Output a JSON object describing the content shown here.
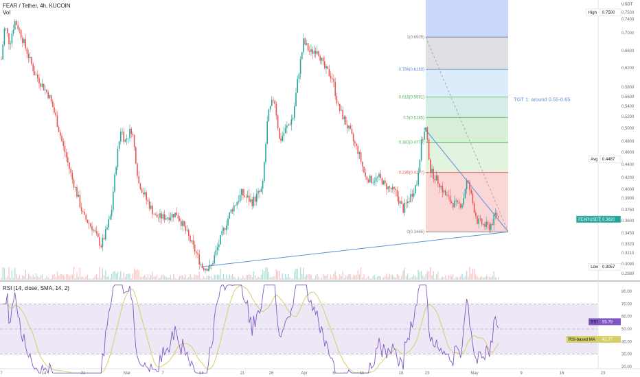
{
  "header": {
    "symbol_line": "FEAR / Tether, 4h, KUCOIN",
    "vol_label": "Vol",
    "currency": "USDT"
  },
  "rsi_header": "RSI (14, close, SMA, 14, 2)",
  "colors": {
    "up": "#26a69a",
    "down": "#ef5350",
    "trendline": "#5b8fd6",
    "rsi_line": "#7e57c2",
    "rsi_ma": "#d4cf6a",
    "rsi_band": "#ede7f6"
  },
  "chart_data": [
    {
      "type": "candlestick",
      "title": "FEAR / Tether, 4h, KUCOIN",
      "ylim": [
        0.298,
        0.75
      ],
      "y_ticks": [
        "0.7500",
        "0.7400",
        "0.7000",
        "0.6600",
        "0.6200",
        "0.5800",
        "0.5600",
        "0.5400",
        "0.5200",
        "0.5000",
        "0.4800",
        "0.4600",
        "0.4400",
        "0.4200",
        "0.4000",
        "0.3900",
        "0.3750",
        "0.3600",
        "0.3450",
        "0.3320",
        "0.3210",
        "0.3090",
        "0.2980"
      ],
      "x_ticks": [
        "7",
        "14",
        "21",
        "Mar",
        "7",
        "14",
        "21",
        "26",
        "Apr",
        "6",
        "11",
        "18",
        "23",
        "May",
        "9",
        "16",
        "23"
      ],
      "price_path": [
        {
          "t": 0,
          "p": 0.64
        },
        {
          "t": 5,
          "p": 0.72
        },
        {
          "t": 12,
          "p": 0.675
        },
        {
          "t": 20,
          "p": 0.735
        },
        {
          "t": 30,
          "p": 0.69
        },
        {
          "t": 48,
          "p": 0.61
        },
        {
          "t": 70,
          "p": 0.56
        },
        {
          "t": 90,
          "p": 0.47
        },
        {
          "t": 105,
          "p": 0.41
        },
        {
          "t": 120,
          "p": 0.365
        },
        {
          "t": 132,
          "p": 0.352
        },
        {
          "t": 145,
          "p": 0.33
        },
        {
          "t": 152,
          "p": 0.345
        },
        {
          "t": 160,
          "p": 0.37
        },
        {
          "t": 168,
          "p": 0.45
        },
        {
          "t": 174,
          "p": 0.5
        },
        {
          "t": 180,
          "p": 0.48
        },
        {
          "t": 190,
          "p": 0.5
        },
        {
          "t": 200,
          "p": 0.41
        },
        {
          "t": 210,
          "p": 0.39
        },
        {
          "t": 225,
          "p": 0.365
        },
        {
          "t": 240,
          "p": 0.365
        },
        {
          "t": 255,
          "p": 0.37
        },
        {
          "t": 270,
          "p": 0.345
        },
        {
          "t": 285,
          "p": 0.318
        },
        {
          "t": 293,
          "p": 0.305
        },
        {
          "t": 305,
          "p": 0.305
        },
        {
          "t": 320,
          "p": 0.34
        },
        {
          "t": 335,
          "p": 0.375
        },
        {
          "t": 350,
          "p": 0.395
        },
        {
          "t": 365,
          "p": 0.385
        },
        {
          "t": 380,
          "p": 0.4
        },
        {
          "t": 388,
          "p": 0.52
        },
        {
          "t": 397,
          "p": 0.56
        },
        {
          "t": 405,
          "p": 0.48
        },
        {
          "t": 415,
          "p": 0.5
        },
        {
          "t": 425,
          "p": 0.52
        },
        {
          "t": 432,
          "p": 0.6
        },
        {
          "t": 440,
          "p": 0.68
        },
        {
          "t": 450,
          "p": 0.655
        },
        {
          "t": 460,
          "p": 0.665
        },
        {
          "t": 470,
          "p": 0.62
        },
        {
          "t": 482,
          "p": 0.6
        },
        {
          "t": 490,
          "p": 0.54
        },
        {
          "t": 505,
          "p": 0.5
        },
        {
          "t": 520,
          "p": 0.46
        },
        {
          "t": 530,
          "p": 0.42
        },
        {
          "t": 540,
          "p": 0.415
        },
        {
          "t": 550,
          "p": 0.42
        },
        {
          "t": 560,
          "p": 0.405
        },
        {
          "t": 575,
          "p": 0.395
        },
        {
          "t": 585,
          "p": 0.375
        },
        {
          "t": 595,
          "p": 0.39
        },
        {
          "t": 605,
          "p": 0.41
        },
        {
          "t": 612,
          "p": 0.48
        },
        {
          "t": 618,
          "p": 0.5
        },
        {
          "t": 625,
          "p": 0.43
        },
        {
          "t": 635,
          "p": 0.415
        },
        {
          "t": 645,
          "p": 0.395
        },
        {
          "t": 655,
          "p": 0.385
        },
        {
          "t": 665,
          "p": 0.38
        },
        {
          "t": 672,
          "p": 0.385
        },
        {
          "t": 678,
          "p": 0.415
        },
        {
          "t": 686,
          "p": 0.385
        },
        {
          "t": 693,
          "p": 0.36
        },
        {
          "t": 702,
          "p": 0.355
        },
        {
          "t": 710,
          "p": 0.352
        },
        {
          "t": 716,
          "p": 0.36
        },
        {
          "t": 720,
          "p": 0.37
        },
        {
          "t": 725,
          "p": 0.362
        }
      ],
      "fibonacci": [
        {
          "label": "1(0.6905)",
          "value": 0.6905,
          "color": "#808080"
        },
        {
          "label": "0.786(0.6169)",
          "value": 0.6169,
          "color": "#5b8fd6"
        },
        {
          "label": "0.618(0.5591)",
          "value": 0.5591,
          "color": "#4caf50"
        },
        {
          "label": "0.5(0.5185)",
          "value": 0.5185,
          "color": "#4caf50"
        },
        {
          "label": "0.382(0.4779)",
          "value": 0.4779,
          "color": "#4caf50"
        },
        {
          "label": "0.236(0.4277)",
          "value": 0.4277,
          "color": "#ef5350"
        },
        {
          "label": "0(0.3465)",
          "value": 0.3465,
          "color": "#808080"
        }
      ],
      "annotation": "TGT 1: around 0.55-0.65",
      "markers": [
        {
          "label": "High",
          "value": "0.7500"
        },
        {
          "label": "Avg",
          "value": "0.4487"
        },
        {
          "label": "FEARUSDT",
          "value": "0.3620"
        },
        {
          "label": "Low",
          "value": "0.3057"
        }
      ]
    },
    {
      "type": "line",
      "title": "RSI (14, close, SMA, 14, 2)",
      "ylim": [
        20,
        80
      ],
      "y_ticks": [
        "80.00",
        "70.00",
        "60.00",
        "50.00",
        "40.00",
        "30.00",
        "20.00"
      ],
      "levels": [
        70,
        50,
        30
      ],
      "series": [
        {
          "name": "RSI",
          "last": "55.79"
        },
        {
          "name": "RSI-based MA",
          "last": "41.77"
        }
      ]
    }
  ]
}
